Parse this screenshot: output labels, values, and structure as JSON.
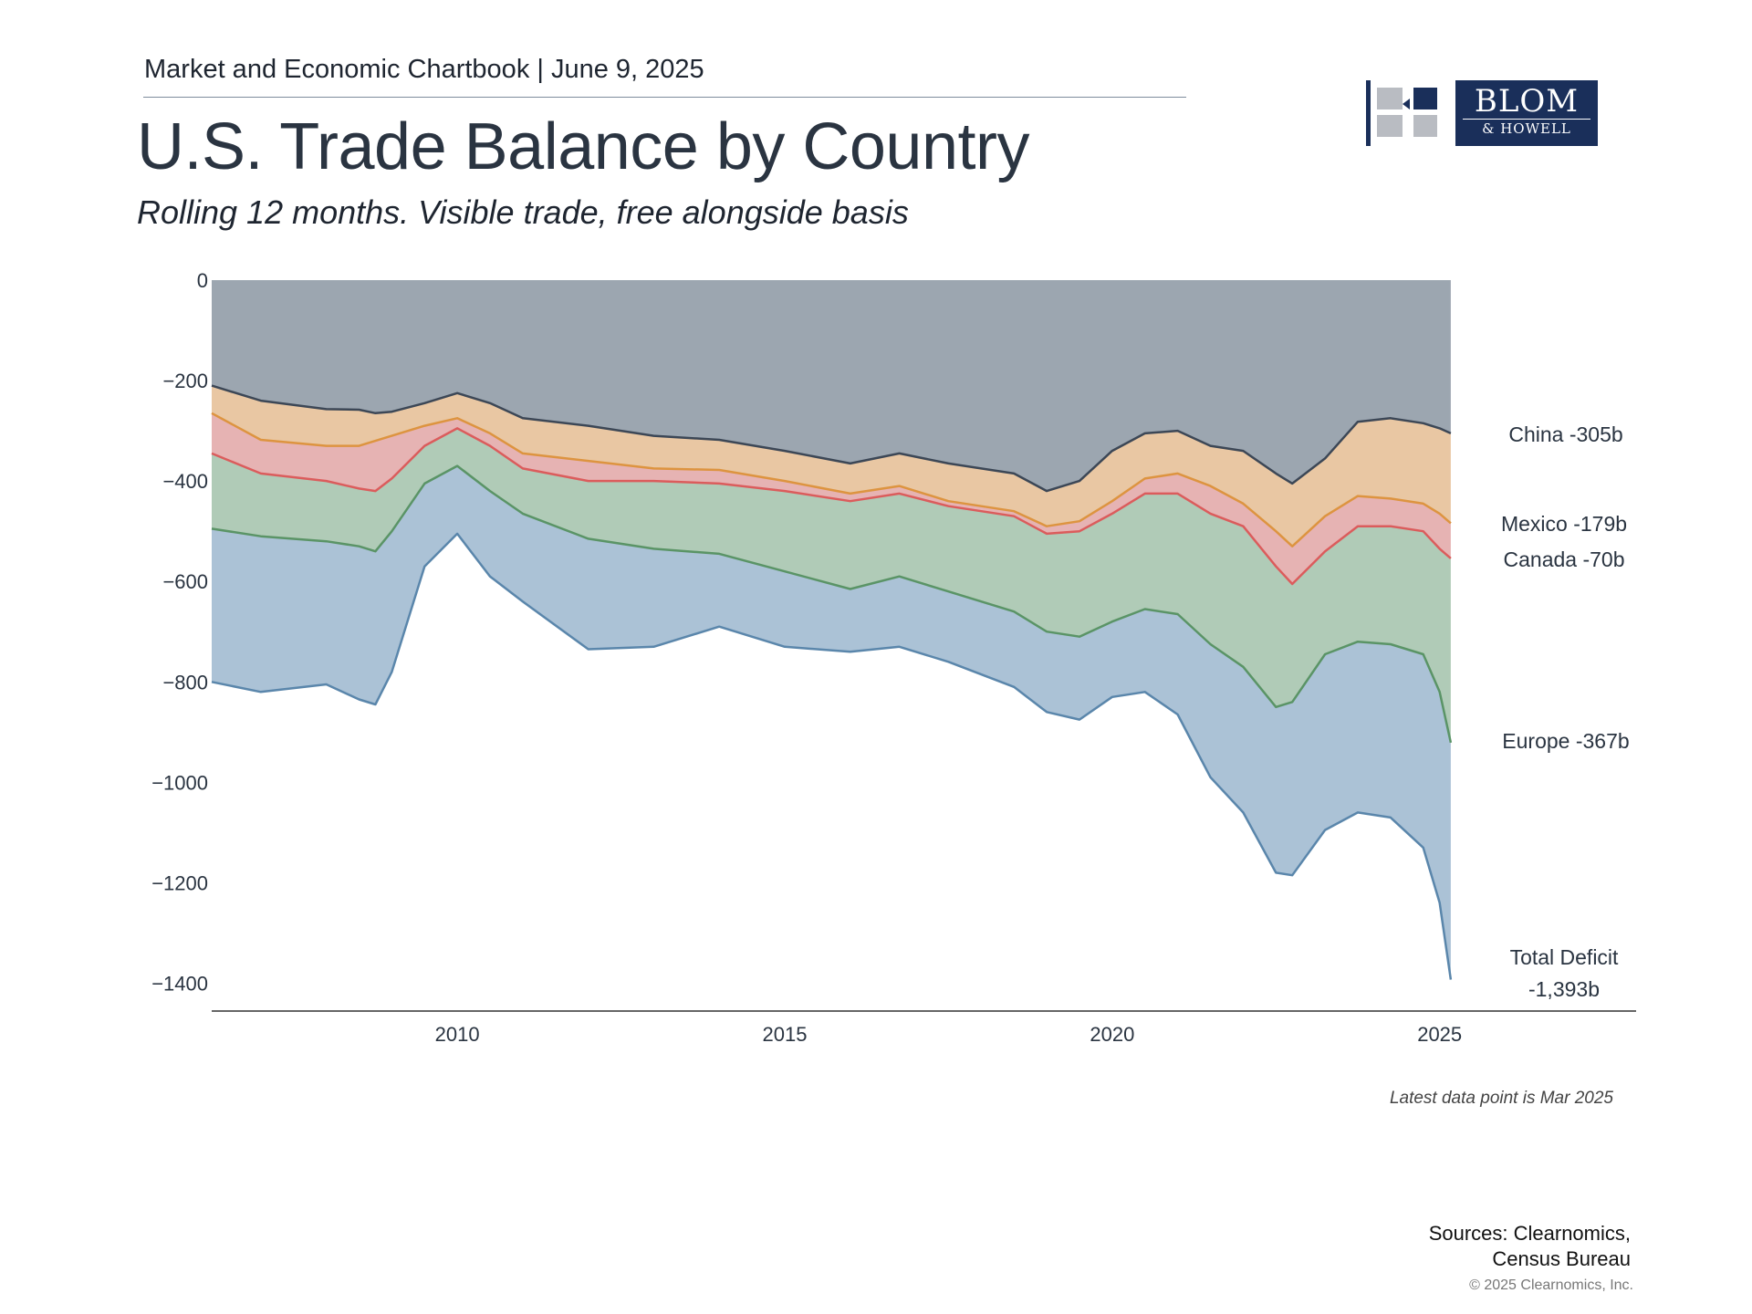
{
  "header": {
    "kicker": "Market and Economic Chartbook | June 9, 2025",
    "title": "U.S. Trade Balance by Country",
    "subtitle": "Rolling 12 months. Visible trade, free alongside basis"
  },
  "logo": {
    "line1": "BLOM",
    "line2": "& HOWELL",
    "colors": {
      "navy": "#1a2f5a",
      "gray": "#b9bcc2"
    }
  },
  "footer": {
    "note": "Latest data point is Mar 2025",
    "sources_line1": "Sources: Clearnomics,",
    "sources_line2": "Census Bureau",
    "copyright": "© 2025 Clearnomics, Inc."
  },
  "chart_data": {
    "type": "area",
    "stacked": true,
    "title": "U.S. Trade Balance by Country",
    "subtitle": "Rolling 12 months. Visible trade, free alongside basis",
    "ylim": [
      -1450,
      0
    ],
    "xlim": [
      2006.25,
      2028.0
    ],
    "yticks": [
      0,
      -200,
      -400,
      -600,
      -800,
      -1000,
      -1200,
      -1400
    ],
    "ytick_labels": [
      "0",
      "−200",
      "−400",
      "−600",
      "−800",
      "−1000",
      "−1200",
      "−1400"
    ],
    "xticks": [
      2010,
      2015,
      2020,
      2025
    ],
    "xtick_labels": [
      "2010",
      "2015",
      "2020",
      "2025"
    ],
    "grid": false,
    "x": [
      2006.25,
      2007.0,
      2008.0,
      2008.5,
      2008.75,
      2009.0,
      2009.5,
      2010.0,
      2010.5,
      2011.0,
      2012.0,
      2013.0,
      2014.0,
      2015.0,
      2016.0,
      2016.75,
      2017.5,
      2018.5,
      2019.0,
      2019.5,
      2020.0,
      2020.5,
      2021.0,
      2021.5,
      2022.0,
      2022.5,
      2022.75,
      2023.25,
      2023.75,
      2024.25,
      2024.75,
      2025.0,
      2025.17
    ],
    "boundaries": {
      "china": [
        -210,
        -240,
        -257,
        -258,
        -265,
        -262,
        -245,
        -225,
        -245,
        -275,
        -290,
        -310,
        -318,
        -340,
        -365,
        -345,
        -365,
        -385,
        -420,
        -400,
        -340,
        -305,
        -300,
        -330,
        -340,
        -385,
        -405,
        -355,
        -282,
        -275,
        -285,
        -295,
        -305
      ],
      "mexico": [
        -265,
        -318,
        -330,
        -330,
        -320,
        -310,
        -290,
        -275,
        -305,
        -345,
        -360,
        -375,
        -378,
        -400,
        -425,
        -410,
        -440,
        -460,
        -490,
        -480,
        -440,
        -395,
        -385,
        -410,
        -445,
        -500,
        -530,
        -470,
        -430,
        -435,
        -445,
        -465,
        -484
      ],
      "canada": [
        -345,
        -385,
        -400,
        -415,
        -420,
        -395,
        -330,
        -295,
        -330,
        -375,
        -400,
        -400,
        -405,
        -420,
        -440,
        -425,
        -450,
        -470,
        -505,
        -500,
        -465,
        -425,
        -425,
        -465,
        -490,
        -570,
        -605,
        -540,
        -490,
        -490,
        -500,
        -535,
        -554
      ],
      "europe": [
        -495,
        -510,
        -520,
        -530,
        -540,
        -500,
        -405,
        -370,
        -420,
        -465,
        -515,
        -535,
        -545,
        -580,
        -615,
        -590,
        -620,
        -660,
        -700,
        -710,
        -680,
        -655,
        -665,
        -725,
        -770,
        -850,
        -840,
        -745,
        -720,
        -725,
        -745,
        -820,
        -921
      ],
      "total": [
        -800,
        -820,
        -805,
        -835,
        -845,
        -780,
        -570,
        -505,
        -590,
        -640,
        -735,
        -730,
        -690,
        -730,
        -740,
        -730,
        -760,
        -810,
        -860,
        -875,
        -830,
        -820,
        -865,
        -990,
        -1060,
        -1180,
        -1185,
        -1095,
        -1060,
        -1070,
        -1130,
        -1240,
        -1393
      ]
    },
    "series": [
      {
        "name": "China",
        "label": "China -305b",
        "fill": "#9ca6b0",
        "line": "#3c4756"
      },
      {
        "name": "Mexico",
        "label": "Mexico -179b",
        "fill": "#e9c7a3",
        "line": "#dd9440"
      },
      {
        "name": "Canada",
        "label": "Canada -70b",
        "fill": "#e6b3b3",
        "line": "#db5c5c"
      },
      {
        "name": "Europe",
        "label": "Europe -367b",
        "fill": "#b0cbb7",
        "line": "#5a9466"
      },
      {
        "name": "Total Deficit",
        "label_line1": "Total Deficit",
        "label_line2": "-1,393b",
        "fill": "#abc2d6",
        "line": "#5a86ab"
      }
    ]
  }
}
